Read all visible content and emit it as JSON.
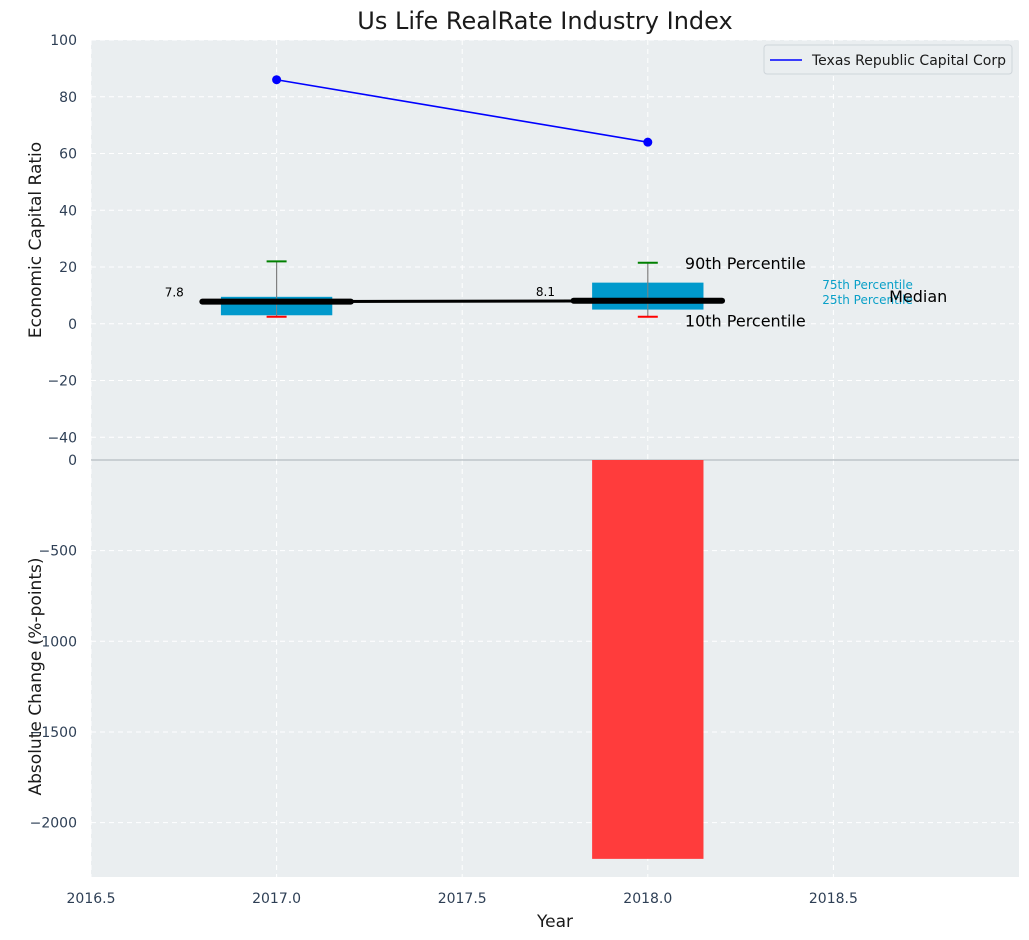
{
  "chart_data": {
    "type": "box-line-bar",
    "title": "Us Life RealRate Industry Index",
    "xlabel": "Year",
    "x_ticks": [
      2016.5,
      2017.0,
      2017.5,
      2018.0,
      2018.5
    ],
    "xlim": [
      2016.5,
      2019.0
    ],
    "colors": {
      "plot_bg": "#eaeef0",
      "box": "#0099cc",
      "median": "#000000",
      "company_line": "#0000ff",
      "p90": "#008000",
      "p10": "#ff0000",
      "bar": "#ff3c3c",
      "ann_small": "#0aa0c8"
    },
    "top_panel": {
      "ylabel": "Economic Capital Ratio",
      "ylim": [
        -48,
        100
      ],
      "y_ticks": [
        -40,
        -20,
        0,
        20,
        40,
        60,
        80,
        100
      ],
      "series": [
        {
          "name": "Texas Republic Capital Corp",
          "x": [
            2017,
            2018
          ],
          "y": [
            86,
            64
          ]
        }
      ],
      "boxes": [
        {
          "x": 2017,
          "p10": 2.5,
          "p25": 3,
          "median": 7.8,
          "p75": 9.5,
          "p90": 22,
          "median_label": "7.8"
        },
        {
          "x": 2018,
          "p10": 2.5,
          "p25": 5,
          "median": 8.1,
          "p75": 14.5,
          "p90": 21.5,
          "median_label": "8.1"
        }
      ],
      "median_line": {
        "x": [
          2017,
          2018
        ],
        "y": [
          7.8,
          8.1
        ]
      },
      "annotations": {
        "p90": "90th Percentile",
        "p10": "10th Percentile",
        "p75": "75th Percentile",
        "p25": "25th Percentile",
        "median": "Median"
      },
      "legend": {
        "placement": "top-right",
        "entries": [
          "Texas Republic Capital Corp"
        ]
      }
    },
    "bottom_panel": {
      "ylabel": "Absolute Change (%-points)",
      "ylim": [
        -2300,
        0
      ],
      "y_ticks": [
        -2000,
        -1500,
        -1000,
        -500,
        0
      ],
      "bars": [
        {
          "x": 2018,
          "value": -2200
        }
      ]
    }
  }
}
